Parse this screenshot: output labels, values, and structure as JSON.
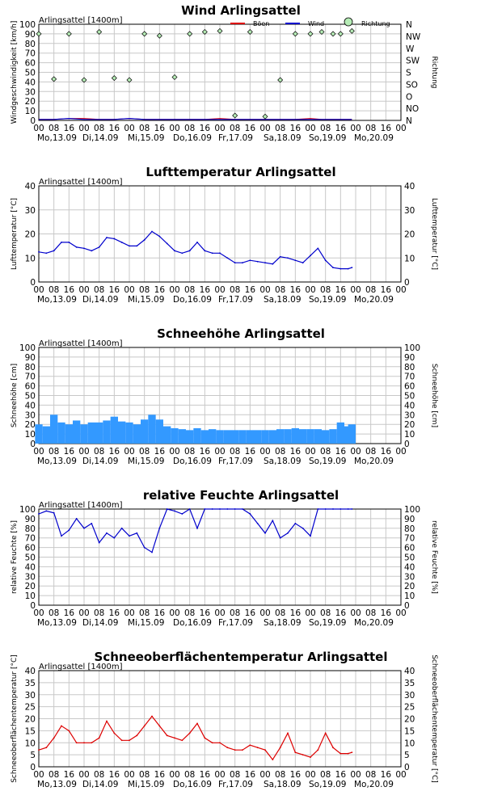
{
  "station": "Arlingsattel [1400m]",
  "colors": {
    "wind": "#0000cc",
    "gust": "#dd0000",
    "direction": "#b6ecb6",
    "temp": "#0000cc",
    "snow": "#3399ff",
    "humidity": "#0000cc",
    "surface": "#dd0000",
    "grid": "#c8c8c8"
  },
  "x_axis": {
    "hour_ticks": [
      "00",
      "08",
      "16",
      "00",
      "08",
      "16",
      "00",
      "08",
      "16",
      "00",
      "08",
      "16",
      "00",
      "08",
      "16",
      "00",
      "08",
      "16",
      "00",
      "08",
      "16",
      "00",
      "08",
      "16",
      "00"
    ],
    "day_labels": [
      "Mo,13.09",
      "Di,14.09",
      "Mi,15.09",
      "Do,16.09",
      "Fr,17.09",
      "Sa,18.09",
      "So,19.09",
      "Mo,20.09"
    ]
  },
  "chart_data": [
    {
      "type": "scatter",
      "title": "Wind Arlingsattel",
      "ylabel": "Windgeschwindigkeit [km/h]",
      "ylabel_right": "Richtung",
      "ylim": [
        0,
        100
      ],
      "yticks": [
        0,
        10,
        20,
        30,
        40,
        50,
        60,
        70,
        80,
        90,
        100
      ],
      "direction_ticks": [
        "N",
        "NO",
        "O",
        "SO",
        "S",
        "SW",
        "W",
        "NW",
        "N"
      ],
      "legend": [
        "Böen",
        "Wind",
        "Richtung"
      ],
      "x_hours": [
        0,
        8,
        16,
        24,
        32,
        40,
        48,
        56,
        64,
        72,
        80,
        88,
        96,
        104,
        112,
        120,
        128,
        136,
        144,
        150,
        156,
        160,
        166
      ],
      "series": [
        {
          "name": "Wind",
          "values": [
            1,
            1,
            2,
            1,
            1,
            1,
            2,
            1,
            1,
            1,
            1,
            1,
            1,
            1,
            1,
            1,
            1,
            1,
            1,
            1,
            1,
            1,
            1
          ]
        },
        {
          "name": "Böen",
          "values": [
            1,
            1,
            2,
            2,
            1,
            1,
            2,
            1,
            1,
            1,
            1,
            1,
            2,
            1,
            1,
            1,
            1,
            1,
            2,
            1,
            1,
            1,
            1
          ]
        },
        {
          "name": "Richtung",
          "values": [
            90,
            43,
            90,
            42,
            92,
            44,
            42,
            90,
            88,
            45,
            90,
            92,
            93,
            5,
            92,
            4,
            42,
            90,
            90,
            92,
            90,
            90,
            93
          ]
        }
      ]
    },
    {
      "type": "line",
      "title": "Lufttemperatur Arlingsattel",
      "ylabel": "Lufttemperatur [°C]",
      "ylim": [
        0,
        40
      ],
      "yticks": [
        0,
        10,
        20,
        30,
        40
      ],
      "x_hours": [
        0,
        4,
        8,
        12,
        16,
        20,
        24,
        28,
        32,
        36,
        40,
        44,
        48,
        52,
        56,
        60,
        64,
        68,
        72,
        76,
        80,
        84,
        88,
        92,
        96,
        100,
        104,
        108,
        112,
        116,
        120,
        124,
        128,
        132,
        136,
        140,
        144,
        148,
        152,
        156,
        160,
        164,
        166
      ],
      "series": [
        {
          "name": "Lufttemperatur",
          "values": [
            12.5,
            12,
            13,
            16.5,
            16.5,
            14.5,
            14,
            13,
            14.5,
            18.5,
            18,
            16.5,
            15,
            15,
            17.5,
            21,
            19,
            16,
            13,
            12,
            13,
            16.5,
            13,
            12,
            12,
            10,
            8,
            8,
            9,
            8.5,
            8,
            7.5,
            10.5,
            10,
            9,
            8,
            11,
            14,
            9,
            6,
            5.5,
            5.5,
            6
          ]
        }
      ]
    },
    {
      "type": "bar",
      "title": "Schneehöhe Arlingsattel",
      "ylabel": "Schneehöhe [cm]",
      "ylim": [
        0,
        100
      ],
      "yticks": [
        0,
        10,
        20,
        30,
        40,
        50,
        60,
        70,
        80,
        90,
        100
      ],
      "x_hours": [
        0,
        4,
        8,
        12,
        16,
        20,
        24,
        28,
        32,
        36,
        40,
        44,
        48,
        52,
        56,
        60,
        64,
        68,
        72,
        76,
        80,
        84,
        88,
        92,
        96,
        100,
        104,
        108,
        112,
        116,
        120,
        124,
        128,
        132,
        136,
        140,
        144,
        148,
        152,
        156,
        160,
        164,
        166
      ],
      "series": [
        {
          "name": "Schneehöhe",
          "values": [
            20,
            18,
            30,
            22,
            20,
            24,
            20,
            22,
            22,
            24,
            28,
            23,
            22,
            20,
            25,
            30,
            25,
            18,
            16,
            15,
            14,
            16,
            14,
            15,
            14,
            14,
            14,
            14,
            14,
            14,
            14,
            14,
            15,
            15,
            16,
            15,
            15,
            15,
            14,
            15,
            22,
            18,
            20
          ]
        }
      ]
    },
    {
      "type": "line",
      "title": "relative Feuchte Arlingsattel",
      "ylabel": "relative Feuchte [%]",
      "ylim": [
        0,
        100
      ],
      "yticks": [
        0,
        10,
        20,
        30,
        40,
        50,
        60,
        70,
        80,
        90,
        100
      ],
      "x_hours": [
        0,
        4,
        8,
        12,
        16,
        20,
        24,
        28,
        32,
        36,
        40,
        44,
        48,
        52,
        56,
        60,
        64,
        68,
        72,
        76,
        80,
        84,
        88,
        92,
        96,
        100,
        104,
        108,
        112,
        116,
        120,
        124,
        128,
        132,
        136,
        140,
        144,
        148,
        152,
        156,
        160,
        164,
        166
      ],
      "series": [
        {
          "name": "relative Feuchte",
          "values": [
            95,
            98,
            96,
            72,
            78,
            90,
            80,
            85,
            65,
            75,
            70,
            80,
            72,
            75,
            60,
            55,
            80,
            100,
            98,
            95,
            100,
            80,
            100,
            100,
            100,
            100,
            100,
            100,
            95,
            85,
            75,
            88,
            70,
            75,
            85,
            80,
            72,
            100,
            100,
            100,
            100,
            100,
            100
          ]
        }
      ]
    },
    {
      "type": "line",
      "title": "Schneeoberflächentemperatur Arlingsattel",
      "ylabel": "Schneeoberflächentemperatur [°C]",
      "ylim": [
        0,
        40
      ],
      "yticks": [
        0,
        5,
        10,
        15,
        20,
        25,
        30,
        35,
        40
      ],
      "x_hours": [
        0,
        4,
        8,
        12,
        16,
        20,
        24,
        28,
        32,
        36,
        40,
        44,
        48,
        52,
        56,
        60,
        64,
        68,
        72,
        76,
        80,
        84,
        88,
        92,
        96,
        100,
        104,
        108,
        112,
        116,
        120,
        124,
        128,
        132,
        136,
        140,
        144,
        148,
        152,
        156,
        160,
        164,
        166
      ],
      "series": [
        {
          "name": "Schneeoberflächentemperatur",
          "values": [
            7,
            8,
            12,
            17,
            15,
            10,
            10,
            10,
            12,
            19,
            14,
            11,
            11,
            13,
            17,
            21,
            17,
            13,
            12,
            11,
            14,
            18,
            12,
            10,
            10,
            8,
            7,
            7,
            9,
            8,
            7,
            3,
            8,
            14,
            6,
            5,
            4,
            7,
            14,
            8,
            5.5,
            5.5,
            6
          ]
        }
      ]
    }
  ]
}
